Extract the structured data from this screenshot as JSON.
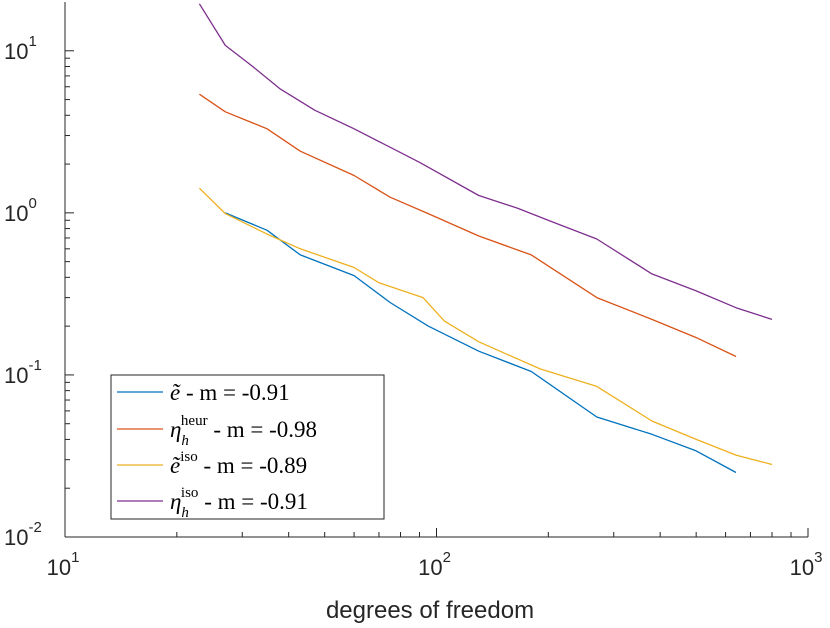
{
  "chart_data": {
    "type": "line",
    "title": "",
    "xlabel": "degrees of freedom",
    "ylabel": "",
    "xscale": "log",
    "yscale": "log",
    "xlim": [
      10,
      1000
    ],
    "ylim": [
      0.01,
      20
    ],
    "grid": false,
    "legend_position": "bottom-left",
    "x_ticks": [
      {
        "base": "10",
        "exp": "1",
        "value": 10
      },
      {
        "base": "10",
        "exp": "2",
        "value": 100
      },
      {
        "base": "10",
        "exp": "3",
        "value": 1000
      }
    ],
    "y_ticks": [
      {
        "base": "10",
        "exp": "-2",
        "value": 0.01
      },
      {
        "base": "10",
        "exp": "-1",
        "value": 0.1
      },
      {
        "base": "10",
        "exp": "0",
        "value": 1
      },
      {
        "base": "10",
        "exp": "1",
        "value": 10
      }
    ],
    "series": [
      {
        "name": "ẽ - m = -0.91",
        "legend_sym": "ẽ",
        "legend_sup": "",
        "legend_sub": "",
        "legend_tail": " - m = -0.91",
        "color": "#0072BD",
        "x": [
          27,
          35,
          43,
          60,
          75,
          95,
          130,
          180,
          270,
          380,
          500,
          640
        ],
        "y": [
          1.0,
          0.78,
          0.55,
          0.41,
          0.28,
          0.2,
          0.14,
          0.105,
          0.055,
          0.043,
          0.034,
          0.025
        ]
      },
      {
        "name": "η_h^heur - m = -0.98",
        "legend_sym": "η",
        "legend_sup": "heur",
        "legend_sub": "h",
        "legend_tail": " - m = -0.98",
        "color": "#D95319",
        "x": [
          23,
          27,
          35,
          43,
          60,
          75,
          95,
          130,
          180,
          270,
          380,
          500,
          640
        ],
        "y": [
          5.4,
          4.2,
          3.3,
          2.4,
          1.7,
          1.25,
          0.99,
          0.72,
          0.55,
          0.3,
          0.22,
          0.17,
          0.13
        ]
      },
      {
        "name": "ẽ^iso - m = -0.89",
        "legend_sym": "ẽ",
        "legend_sup": "iso",
        "legend_sub": "",
        "legend_tail": " - m = -0.89",
        "color": "#EDB120",
        "x": [
          23,
          27,
          35,
          43,
          60,
          70,
          92,
          105,
          130,
          190,
          270,
          380,
          500,
          640,
          800
        ],
        "y": [
          1.42,
          0.99,
          0.74,
          0.6,
          0.46,
          0.37,
          0.3,
          0.215,
          0.16,
          0.109,
          0.085,
          0.052,
          0.04,
          0.032,
          0.028
        ]
      },
      {
        "name": "η_h^iso - m = -0.91",
        "legend_sym": "η",
        "legend_sup": "iso",
        "legend_sub": "h",
        "legend_tail": " - m = -0.91",
        "color": "#7E2F8E",
        "x": [
          23,
          27,
          32,
          38,
          47,
          60,
          90,
          130,
          165,
          205,
          270,
          380,
          500,
          640,
          800
        ],
        "y": [
          19.5,
          10.8,
          8.0,
          5.8,
          4.3,
          3.3,
          2.05,
          1.28,
          1.07,
          0.88,
          0.69,
          0.42,
          0.33,
          0.26,
          0.22
        ]
      }
    ]
  }
}
